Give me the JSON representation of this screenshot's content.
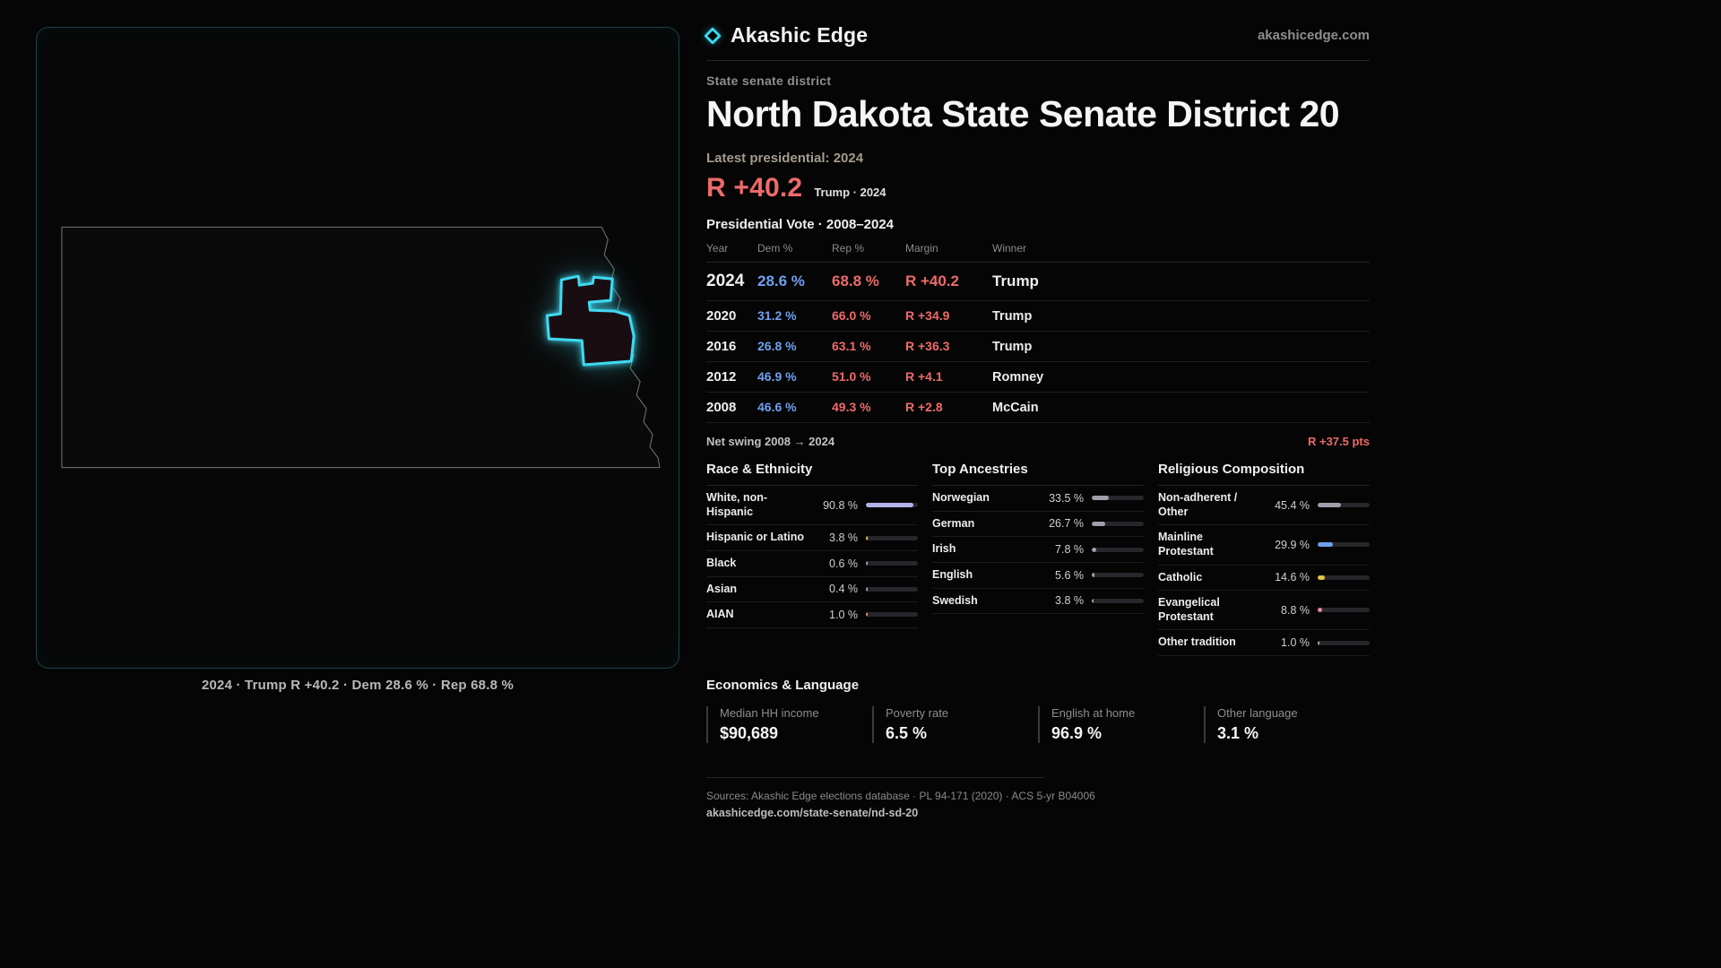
{
  "colors": {
    "accent": "#3fd9f2",
    "dem_blue": "#6fa0ee",
    "rep_red": "#ee6a6a"
  },
  "header": {
    "brand": "Akashic Edge",
    "domain": "akashicedge.com"
  },
  "page": {
    "kicker": "State senate district",
    "title": "North Dakota State Senate District 20",
    "latest_label": "Latest presidential: 2024",
    "headline_margin": "R +40.2",
    "headline_context": "Trump · 2024",
    "table_title": "Presidential Vote · 2008–2024"
  },
  "map": {
    "caption": "2024 · Trump R +40.2 · Dem 28.6 % · Rep 68.8 %"
  },
  "results_table": {
    "columns": [
      "Year",
      "Dem %",
      "Rep %",
      "Margin",
      "Winner"
    ],
    "rows": [
      {
        "year": "2024",
        "dem": "28.6 %",
        "rep": "68.8 %",
        "margin": "R +40.2",
        "winner": "Trump"
      },
      {
        "year": "2020",
        "dem": "31.2 %",
        "rep": "66.0 %",
        "margin": "R +34.9",
        "winner": "Trump"
      },
      {
        "year": "2016",
        "dem": "26.8 %",
        "rep": "63.1 %",
        "margin": "R +36.3",
        "winner": "Trump"
      },
      {
        "year": "2012",
        "dem": "46.9 %",
        "rep": "51.0 %",
        "margin": "R +4.1",
        "winner": "Romney"
      },
      {
        "year": "2008",
        "dem": "46.6 %",
        "rep": "49.3 %",
        "margin": "R +2.8",
        "winner": "McCain"
      }
    ],
    "net_swing_label": "Net swing 2008 → 2024",
    "net_swing_value": "R +37.5 pts"
  },
  "demographics": {
    "race": {
      "title": "Race & Ethnicity",
      "rows": [
        {
          "label": "White, non-Hispanic",
          "value": "90.8 %",
          "pct": 90.8,
          "bar_color": "#b5b3e8"
        },
        {
          "label": "Hispanic or Latino",
          "value": "3.8 %",
          "pct": 3.8,
          "bar_color": "#e8c34d"
        },
        {
          "label": "Black",
          "value": "0.6 %",
          "pct": 0.6,
          "bar_color": "#9fa0ab"
        },
        {
          "label": "Asian",
          "value": "0.4 %",
          "pct": 0.4,
          "bar_color": "#9fa0ab"
        },
        {
          "label": "AIAN",
          "value": "1.0 %",
          "pct": 1.0,
          "bar_color": "#e0854c"
        }
      ]
    },
    "ancestries": {
      "title": "Top Ancestries",
      "rows": [
        {
          "label": "Norwegian",
          "value": "33.5 %",
          "pct": 33.5,
          "bar_color": "#9fa0ab"
        },
        {
          "label": "German",
          "value": "26.7 %",
          "pct": 26.7,
          "bar_color": "#9fa0ab"
        },
        {
          "label": "Irish",
          "value": "7.8 %",
          "pct": 7.8,
          "bar_color": "#9fa0ab"
        },
        {
          "label": "English",
          "value": "5.6 %",
          "pct": 5.6,
          "bar_color": "#9fa0ab"
        },
        {
          "label": "Swedish",
          "value": "3.8 %",
          "pct": 3.8,
          "bar_color": "#9fa0ab"
        }
      ]
    },
    "religion": {
      "title": "Religious Composition",
      "rows": [
        {
          "label": "Non-adherent / Other",
          "value": "45.4 %",
          "pct": 45.4,
          "bar_color": "#9fa0ab"
        },
        {
          "label": "Mainline Protestant",
          "value": "29.9 %",
          "pct": 29.9,
          "bar_color": "#6fa0ee"
        },
        {
          "label": "Catholic",
          "value": "14.6 %",
          "pct": 14.6,
          "bar_color": "#e8c34d"
        },
        {
          "label": "Evangelical Protestant",
          "value": "8.8 %",
          "pct": 8.8,
          "bar_color": "#ef82a4"
        },
        {
          "label": "Other tradition",
          "value": "1.0 %",
          "pct": 1.0,
          "bar_color": "#9fa0ab"
        }
      ]
    }
  },
  "economics": {
    "title": "Economics & Language",
    "stats": [
      {
        "label": "Median HH income",
        "value": "$90,689"
      },
      {
        "label": "Poverty rate",
        "value": "6.5 %"
      },
      {
        "label": "English at home",
        "value": "96.9 %"
      },
      {
        "label": "Other language",
        "value": "3.1 %"
      }
    ]
  },
  "footer": {
    "sources": "Sources: Akashic Edge elections database · PL 94-171 (2020) · ACS 5-yr B04006",
    "permalink": "akashicedge.com/state-senate/nd-sd-20"
  }
}
